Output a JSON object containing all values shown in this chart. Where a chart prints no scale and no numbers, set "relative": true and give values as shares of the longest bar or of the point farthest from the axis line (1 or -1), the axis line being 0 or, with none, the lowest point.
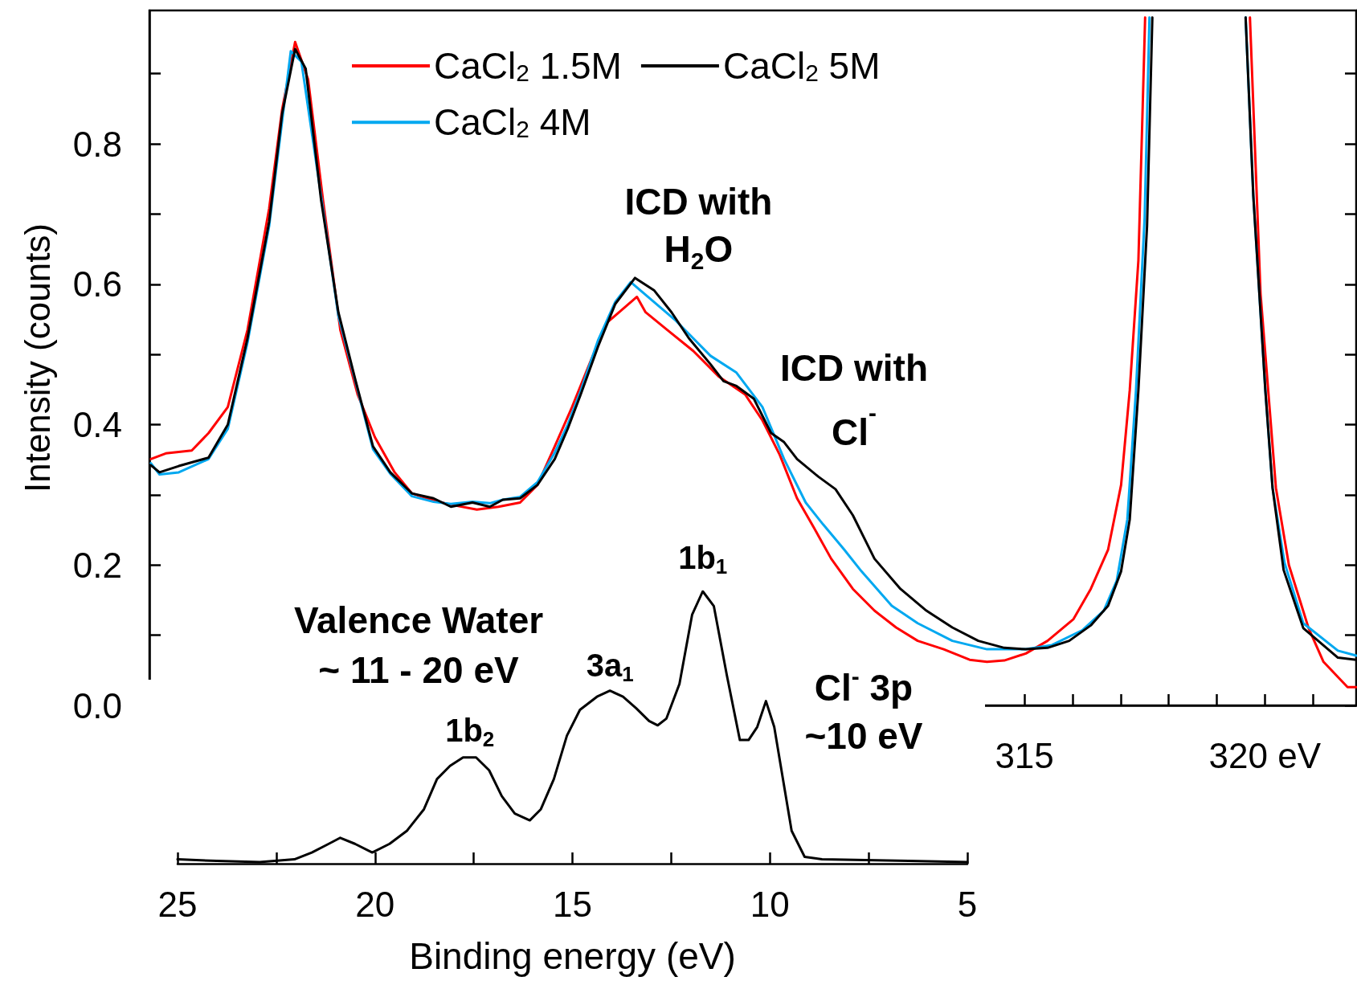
{
  "chart_data": [
    {
      "type": "line",
      "ylabel": "Intensity (counts)",
      "xlim": [
        296.8,
        321.9
      ],
      "ylim": [
        0,
        0.99
      ],
      "xticks": [
        315,
        {
          "value": 316,
          "label": null
        },
        {
          "value": 317,
          "label": null
        },
        {
          "value": 318,
          "label": null
        },
        {
          "value": 319,
          "label": null
        },
        {
          "value": 320,
          "label": "320 eV"
        },
        {
          "value": 321,
          "label": null
        }
      ],
      "yticks": [
        {
          "value": 0,
          "label": "0.0"
        },
        {
          "value": 0.1,
          "label": null
        },
        0.2,
        {
          "value": 0.3,
          "label": null
        },
        0.4,
        {
          "value": 0.5,
          "label": null
        },
        0.6,
        {
          "value": 0.7,
          "label": null
        },
        0.8,
        {
          "value": 0.9,
          "label": null
        }
      ],
      "legend": "top left",
      "annotations": [
        {
          "text": "ICD with\nH$_{2}$O",
          "x": 306.9,
          "y": 0.61
        },
        "ICD with\nCl$^{-}$"
      ],
      "series": [
        {
          "name": "CaCl$_{2}$ 1.5M",
          "color": "#ff0000",
          "x": [
            296.83,
            297.14,
            297.41,
            297.68,
            298.03,
            298.43,
            298.84,
            299.29,
            299.56,
            299.83,
            300.1,
            300.41,
            300.77,
            301.13,
            301.49,
            301.9,
            302.26,
            302.71,
            303.07,
            303.61,
            304.06,
            304.51,
            304.87,
            305.23,
            305.59,
            305.95,
            306.31,
            306.67,
            306.94,
            307.12,
            307.57,
            308.11,
            308.65,
            309.19,
            309.55,
            309.91,
            310.27,
            310.63,
            310.98,
            311.43,
            311.88,
            312.33,
            312.78,
            313.32,
            313.86,
            314.22,
            314.58,
            315.03,
            315.48,
            316.02,
            316.38,
            316.74,
            317.01,
            317.19,
            317.37,
            317.46,
            317.51,
            318.6,
            319.69,
            319.91,
            320.23,
            320.5,
            320.91,
            321.22,
            321.72,
            321.9
          ],
          "values": [
            0.351,
            0.359,
            0.361,
            0.363,
            0.388,
            0.425,
            0.535,
            0.708,
            0.849,
            0.945,
            0.892,
            0.72,
            0.535,
            0.443,
            0.382,
            0.332,
            0.302,
            0.292,
            0.286,
            0.279,
            0.283,
            0.289,
            0.314,
            0.369,
            0.425,
            0.486,
            0.545,
            0.566,
            0.582,
            0.56,
            0.535,
            0.505,
            0.468,
            0.443,
            0.406,
            0.357,
            0.295,
            0.252,
            0.209,
            0.166,
            0.135,
            0.111,
            0.092,
            0.08,
            0.065,
            0.062,
            0.064,
            0.074,
            0.092,
            0.123,
            0.166,
            0.222,
            0.314,
            0.449,
            0.634,
            0.855,
            0.98,
            null,
            0.98,
            0.587,
            0.31,
            0.2,
            0.11,
            0.062,
            0.026,
            0.026
          ]
        },
        {
          "name": "CaCl$_{2}$ 4M",
          "color": "#00a8f0",
          "x": [
            296.83,
            297.01,
            297.41,
            298.03,
            298.43,
            298.84,
            299.29,
            299.74,
            299.96,
            300.37,
            300.73,
            301.09,
            301.45,
            301.81,
            302.26,
            302.71,
            303.07,
            303.52,
            303.88,
            304.15,
            304.51,
            304.87,
            305.23,
            305.5,
            305.77,
            306.13,
            306.49,
            306.81,
            307.75,
            308.47,
            309.01,
            309.55,
            310.0,
            310.45,
            310.81,
            311.25,
            311.61,
            312.24,
            312.78,
            313.5,
            314.22,
            315.03,
            315.57,
            316.2,
            316.65,
            316.92,
            317.14,
            317.32,
            317.5,
            317.6,
            318.6,
            319.6,
            319.76,
            320.01,
            320.16,
            320.41,
            320.8,
            321.52,
            321.9
          ],
          "values": [
            0.345,
            0.329,
            0.332,
            0.351,
            0.394,
            0.517,
            0.683,
            0.932,
            0.917,
            0.726,
            0.555,
            0.46,
            0.365,
            0.33,
            0.298,
            0.29,
            0.287,
            0.29,
            0.288,
            0.293,
            0.297,
            0.318,
            0.36,
            0.4,
            0.448,
            0.52,
            0.575,
            0.603,
            0.548,
            0.498,
            0.474,
            0.425,
            0.351,
            0.289,
            0.258,
            0.222,
            0.191,
            0.142,
            0.117,
            0.092,
            0.08,
            0.08,
            0.086,
            0.107,
            0.135,
            0.178,
            0.265,
            0.449,
            0.695,
            0.98,
            null,
            0.98,
            0.726,
            0.449,
            0.31,
            0.203,
            0.117,
            0.078,
            0.071
          ]
        },
        {
          "name": "CaCl$_{2}$ 5M",
          "color": "#000000",
          "x": [
            296.83,
            297.01,
            297.41,
            298.03,
            298.43,
            298.84,
            299.29,
            299.56,
            299.83,
            300.05,
            300.37,
            300.73,
            301.09,
            301.45,
            301.81,
            302.26,
            302.71,
            303.07,
            303.52,
            303.88,
            304.15,
            304.51,
            304.87,
            305.23,
            305.5,
            305.77,
            306.13,
            306.49,
            306.9,
            307.3,
            307.66,
            308.02,
            308.47,
            308.74,
            309.01,
            309.37,
            309.73,
            310.0,
            310.27,
            310.71,
            311.07,
            311.43,
            311.88,
            312.42,
            312.96,
            313.5,
            314.04,
            314.58,
            315.03,
            315.48,
            315.93,
            316.38,
            316.74,
            317.01,
            317.19,
            317.37,
            317.55,
            317.66,
            318.6,
            319.6,
            319.76,
            320.01,
            320.16,
            320.39,
            320.8,
            321.52,
            321.9
          ],
          "values": [
            0.342,
            0.332,
            0.341,
            0.353,
            0.4,
            0.523,
            0.689,
            0.843,
            0.935,
            0.907,
            0.72,
            0.56,
            0.462,
            0.369,
            0.332,
            0.302,
            0.295,
            0.283,
            0.289,
            0.283,
            0.293,
            0.295,
            0.314,
            0.351,
            0.394,
            0.443,
            0.511,
            0.572,
            0.609,
            0.591,
            0.56,
            0.523,
            0.486,
            0.462,
            0.455,
            0.437,
            0.388,
            0.375,
            0.351,
            0.326,
            0.308,
            0.271,
            0.209,
            0.166,
            0.135,
            0.111,
            0.092,
            0.082,
            0.08,
            0.082,
            0.092,
            0.114,
            0.142,
            0.191,
            0.265,
            0.449,
            0.683,
            0.98,
            null,
            0.98,
            0.726,
            0.449,
            0.31,
            0.193,
            0.11,
            0.068,
            0.065
          ]
        }
      ]
    },
    {
      "type": "line",
      "xlabel": "Binding energy (eV)",
      "relative": true,
      "xlim": [
        25,
        5
      ],
      "xticks": [
        25,
        {
          "value": 22.5,
          "label": null
        },
        20,
        {
          "value": 17.5,
          "label": null
        },
        15,
        {
          "value": 12.5,
          "label": null
        },
        10,
        {
          "value": 7.5,
          "label": null
        },
        5
      ],
      "annotations": [
        "Valence Water\n~ 11 - 20 eV",
        {
          "text": "1b$_{2}$",
          "x": 17.6,
          "y": 0.39
        },
        {
          "text": "3a$_{1}$",
          "x": 14.05,
          "y": 0.635
        },
        {
          "text": "1b$_{1}$",
          "x": 11.7,
          "y": 1
        },
        "Cl$^{-}$ 3p\n~10 eV"
      ],
      "series": [
        {
          "color": "#000000",
          "x": [
            25,
            24.01,
            22.92,
            22.04,
            21.6,
            21.17,
            20.88,
            20.51,
            20.07,
            19.63,
            19.19,
            18.76,
            18.43,
            18.1,
            17.77,
            17.44,
            17.11,
            16.79,
            16.46,
            16.08,
            15.8,
            15.47,
            15.14,
            14.81,
            14.38,
            14.05,
            13.72,
            13.39,
            13.06,
            12.84,
            12.62,
            12.29,
            11.97,
            11.7,
            11.42,
            11.09,
            10.76,
            10.54,
            10.32,
            10.1,
            9.89,
            9.67,
            9.45,
            9.12,
            8.68,
            6.49,
            5
          ],
          "values": [
            0.016,
            0.01,
            0.006,
            0.016,
            0.041,
            0.073,
            0.095,
            0.073,
            0.041,
            0.073,
            0.121,
            0.2,
            0.311,
            0.359,
            0.39,
            0.39,
            0.343,
            0.248,
            0.184,
            0.159,
            0.2,
            0.311,
            0.47,
            0.565,
            0.613,
            0.635,
            0.613,
            0.571,
            0.524,
            0.508,
            0.533,
            0.66,
            0.914,
            1,
            0.946,
            0.692,
            0.454,
            0.454,
            0.502,
            0.597,
            0.502,
            0.311,
            0.121,
            0.025,
            0.016,
            0.01,
            0.006
          ]
        }
      ]
    }
  ]
}
